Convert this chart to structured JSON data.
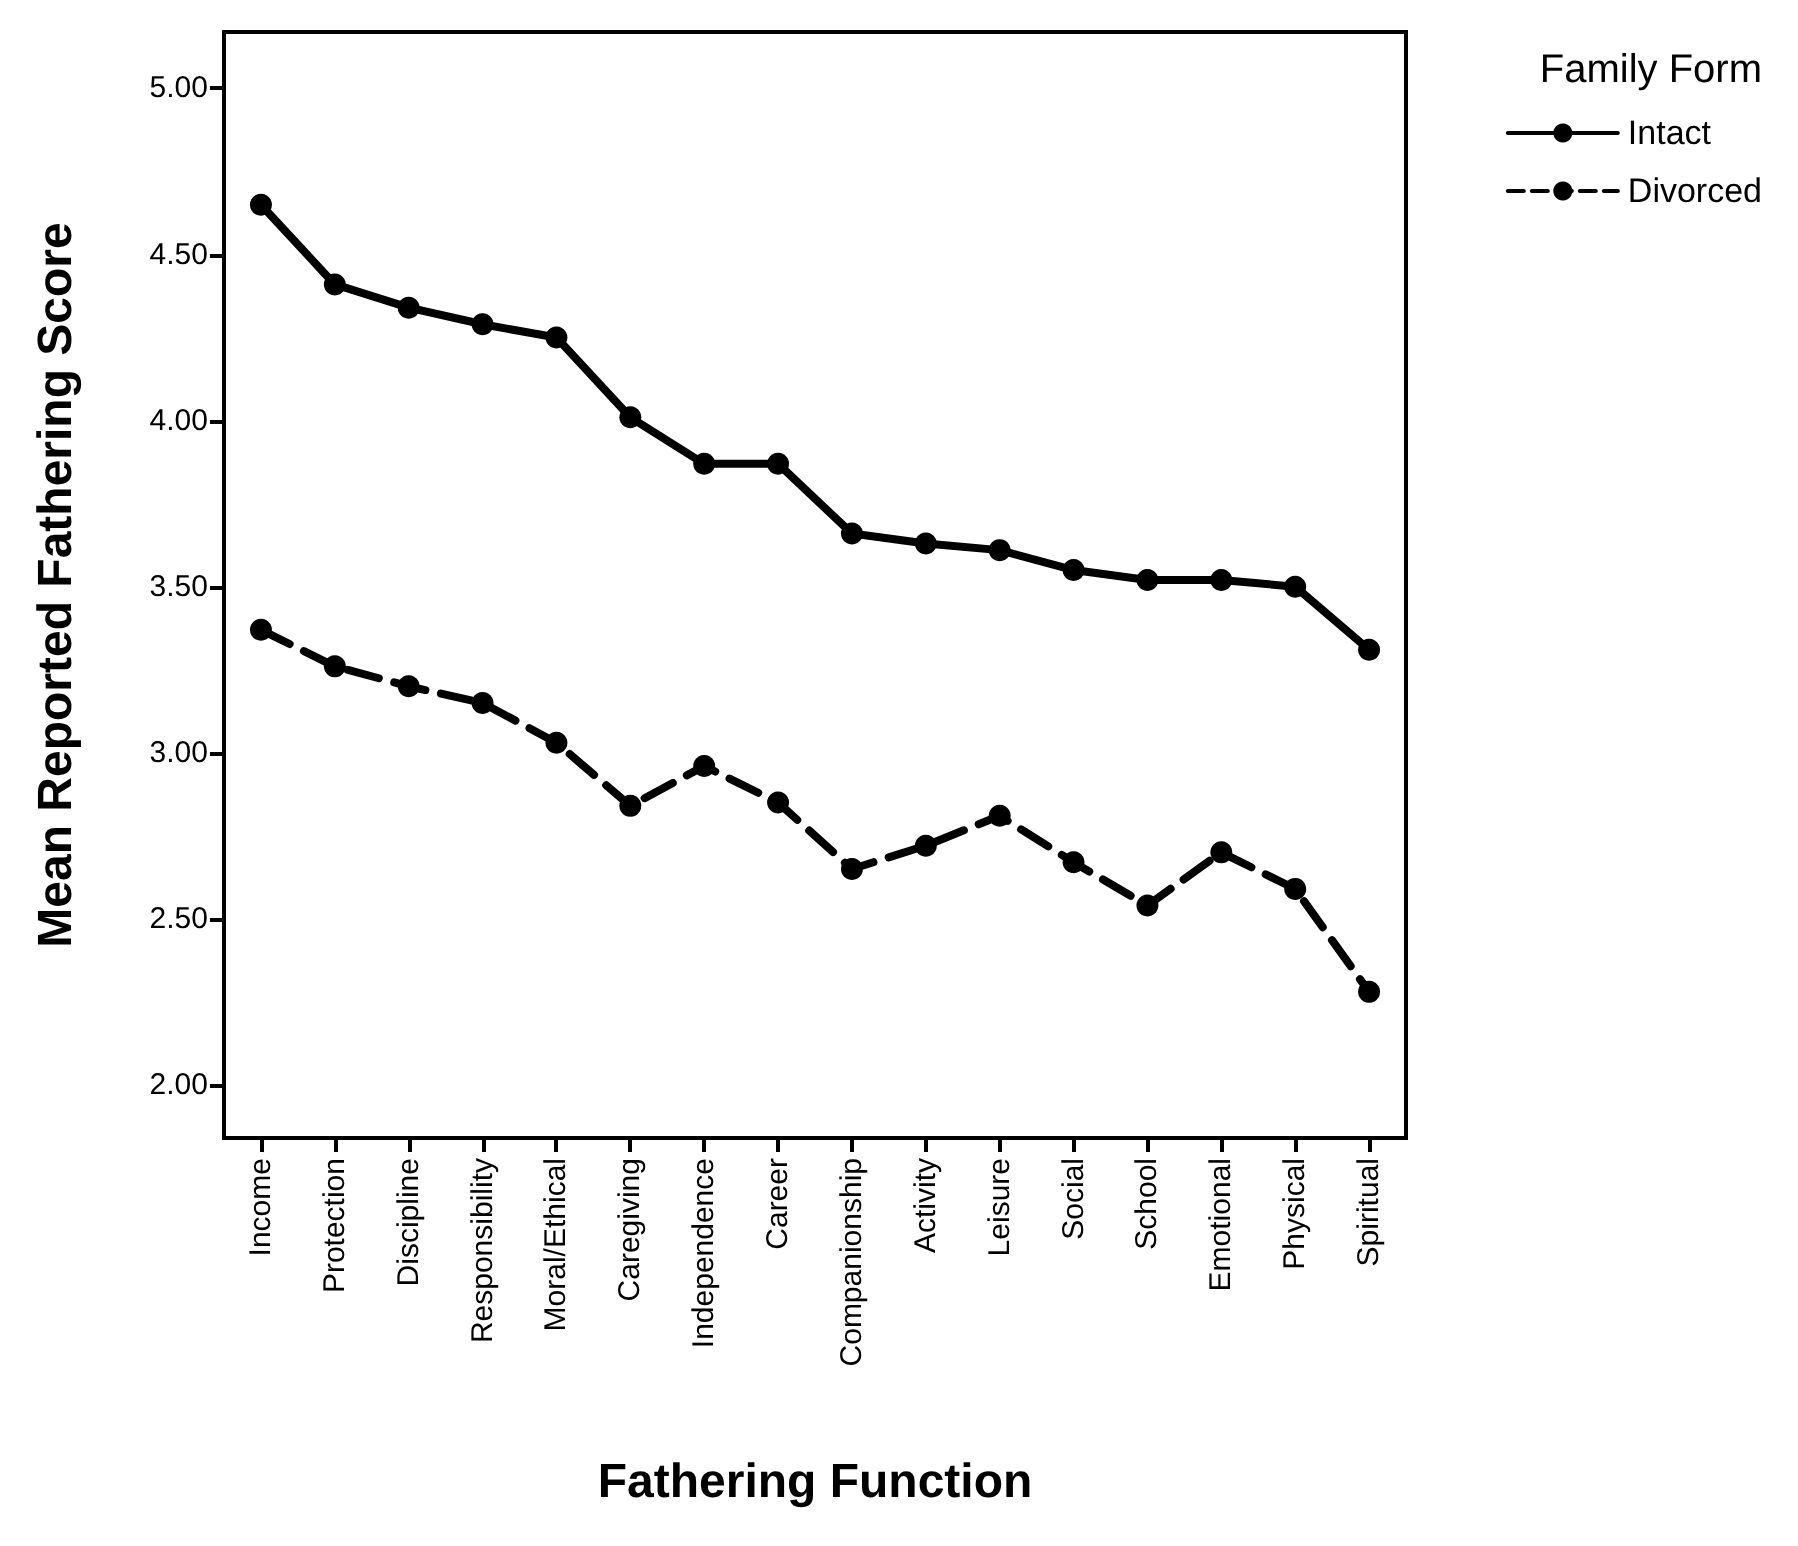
{
  "chart_data": {
    "type": "line",
    "xlabel": "Fathering Function",
    "ylabel": "Mean Reported Fathering Score",
    "legend_title": "Family Form",
    "categories": [
      "Income",
      "Protection",
      "Discipline",
      "Responsibility",
      "Moral/Ethical",
      "Caregiving",
      "Independence",
      "Career",
      "Companionship",
      "Activity",
      "Leisure",
      "Social",
      "School",
      "Emotional",
      "Physical",
      "Spiritual"
    ],
    "series": [
      {
        "name": "Intact",
        "color": "#000000",
        "line_style": "solid",
        "values": [
          4.65,
          4.41,
          4.34,
          4.29,
          4.25,
          4.01,
          3.87,
          3.87,
          3.66,
          3.63,
          3.61,
          3.55,
          3.52,
          3.52,
          3.5,
          3.31
        ]
      },
      {
        "name": "Divorced",
        "color": "#000000",
        "line_style": "dashed",
        "values": [
          3.37,
          3.26,
          3.2,
          3.15,
          3.03,
          2.84,
          2.96,
          2.85,
          2.65,
          2.72,
          2.81,
          2.67,
          2.54,
          2.7,
          2.59,
          2.28
        ]
      }
    ],
    "ylim": [
      1.84,
      5.17
    ],
    "yticks": [
      {
        "value": 2,
        "label": "2.00"
      },
      {
        "value": 2.5,
        "label": "2.50"
      },
      {
        "value": 3,
        "label": "3.00"
      },
      {
        "value": 3.5,
        "label": "3.50"
      },
      {
        "value": 4,
        "label": "4.00"
      },
      {
        "value": 4.5,
        "label": "4.50"
      },
      {
        "value": 5,
        "label": "5.00"
      }
    ],
    "grid": false,
    "legend": "top right",
    "marker": "circle"
  }
}
